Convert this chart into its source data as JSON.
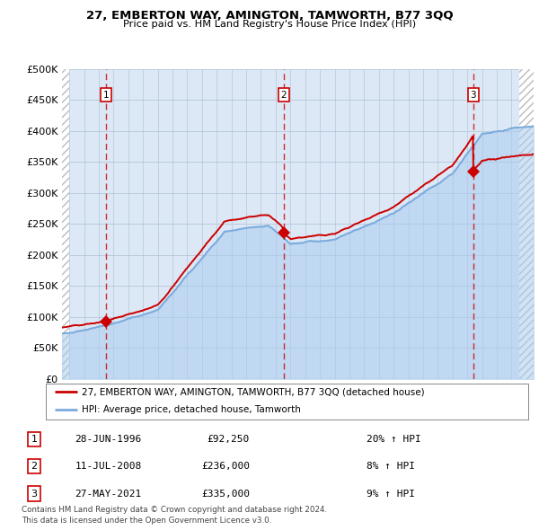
{
  "title1": "27, EMBERTON WAY, AMINGTON, TAMWORTH, B77 3QQ",
  "title2": "Price paid vs. HM Land Registry's House Price Index (HPI)",
  "ylim": [
    0,
    500000
  ],
  "yticks": [
    0,
    50000,
    100000,
    150000,
    200000,
    250000,
    300000,
    350000,
    400000,
    450000,
    500000
  ],
  "ytick_labels": [
    "£0",
    "£50K",
    "£100K",
    "£150K",
    "£200K",
    "£250K",
    "£300K",
    "£350K",
    "£400K",
    "£450K",
    "£500K"
  ],
  "hpi_color": "#7aaadd",
  "hpi_fill_color": "#aaccee",
  "sale_color": "#cc0000",
  "vline_color": "#cc0000",
  "bg_color": "#dce8f5",
  "grid_color": "#b0c4d8",
  "legend_label_sale": "27, EMBERTON WAY, AMINGTON, TAMWORTH, B77 3QQ (detached house)",
  "legend_label_hpi": "HPI: Average price, detached house, Tamworth",
  "sale_dates": [
    1996.49,
    2008.53,
    2021.41
  ],
  "sale_prices": [
    92250,
    236000,
    335000
  ],
  "sale_numbers": [
    "1",
    "2",
    "3"
  ],
  "table_rows": [
    [
      "1",
      "28-JUN-1996",
      "£92,250",
      "20% ↑ HPI"
    ],
    [
      "2",
      "11-JUL-2008",
      "£236,000",
      "8% ↑ HPI"
    ],
    [
      "3",
      "27-MAY-2021",
      "£335,000",
      "9% ↑ HPI"
    ]
  ],
  "footnote": "Contains HM Land Registry data © Crown copyright and database right 2024.\nThis data is licensed under the Open Government Licence v3.0.",
  "xmin": 1993.5,
  "xmax": 2025.5,
  "hatch_end": 1994.0,
  "hatch_start2": 2024.5
}
